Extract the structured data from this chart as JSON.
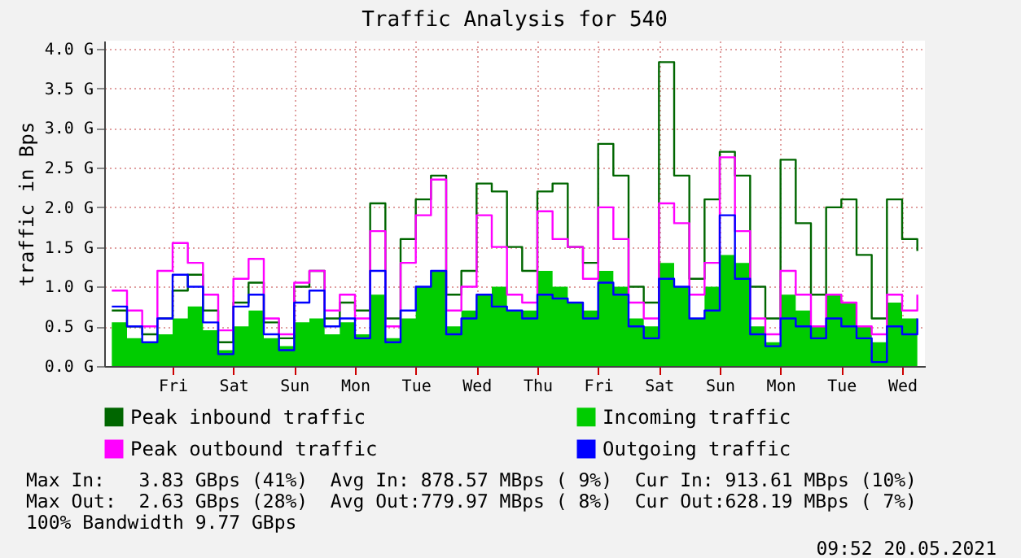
{
  "chart_data": {
    "type": "step",
    "title": "Traffic Analysis for 540",
    "ylabel": "traffic in Bps",
    "categories": [
      null,
      null,
      null,
      null,
      "Fri",
      null,
      null,
      null,
      "Sat",
      null,
      null,
      null,
      "Sun",
      null,
      null,
      null,
      "Mon",
      null,
      null,
      null,
      "Tue",
      null,
      null,
      null,
      "Wed",
      null,
      null,
      null,
      "Thu",
      null,
      null,
      null,
      "Fri",
      null,
      null,
      null,
      "Sat",
      null,
      null,
      null,
      "Sun",
      null,
      null,
      null,
      "Mon",
      null,
      null,
      null,
      "Tue",
      null,
      null,
      null,
      "Wed",
      null
    ],
    "series": [
      {
        "name": "Peak inbound traffic",
        "color": "#006600",
        "values": [
          0.7,
          0.5,
          0.4,
          0.6,
          0.95,
          1.15,
          0.7,
          0.3,
          0.8,
          1.05,
          0.55,
          0.35,
          1.0,
          1.2,
          0.6,
          0.8,
          0.7,
          2.05,
          0.6,
          1.6,
          2.1,
          2.4,
          0.9,
          1.2,
          2.3,
          2.2,
          1.5,
          1.2,
          2.2,
          2.3,
          1.5,
          1.3,
          2.8,
          2.4,
          1.0,
          0.8,
          3.83,
          2.4,
          1.1,
          2.1,
          2.7,
          2.4,
          1.0,
          0.6,
          2.6,
          1.8,
          0.9,
          2.0,
          2.1,
          1.4,
          0.6,
          2.1,
          1.6,
          1.45
        ]
      },
      {
        "name": "Incoming traffic",
        "type": "area",
        "color": "#00cc00",
        "values": [
          0.55,
          0.35,
          0.3,
          0.4,
          0.6,
          0.75,
          0.45,
          0.2,
          0.5,
          0.7,
          0.35,
          0.25,
          0.55,
          0.6,
          0.4,
          0.55,
          0.4,
          0.9,
          0.35,
          0.6,
          1.0,
          1.2,
          0.5,
          0.7,
          0.9,
          1.0,
          0.7,
          0.7,
          1.2,
          1.0,
          0.8,
          0.7,
          1.2,
          1.0,
          0.6,
          0.5,
          1.3,
          1.0,
          0.6,
          1.0,
          1.4,
          1.3,
          0.5,
          0.3,
          0.9,
          0.7,
          0.5,
          0.9,
          0.8,
          0.5,
          0.3,
          0.8,
          0.6,
          0.9
        ]
      },
      {
        "name": "Peak outbound traffic",
        "color": "#ff00ff",
        "values": [
          0.95,
          0.7,
          0.5,
          1.2,
          1.55,
          1.3,
          0.9,
          0.45,
          1.1,
          1.35,
          0.6,
          0.4,
          1.05,
          1.2,
          0.7,
          0.9,
          0.6,
          1.7,
          0.5,
          1.3,
          1.9,
          2.35,
          0.7,
          1.0,
          1.9,
          1.5,
          0.9,
          0.8,
          1.95,
          1.6,
          1.5,
          1.1,
          2.0,
          1.6,
          0.8,
          0.6,
          2.05,
          1.8,
          0.9,
          1.3,
          2.63,
          1.7,
          0.6,
          0.4,
          1.2,
          0.9,
          0.5,
          0.9,
          0.8,
          0.5,
          0.4,
          0.9,
          0.7,
          0.9
        ]
      },
      {
        "name": "Outgoing traffic",
        "color": "#0000ff",
        "values": [
          0.75,
          0.5,
          0.3,
          0.6,
          1.15,
          1.0,
          0.55,
          0.15,
          0.75,
          0.9,
          0.4,
          0.2,
          0.8,
          0.95,
          0.5,
          0.6,
          0.35,
          1.2,
          0.3,
          0.7,
          1.0,
          1.2,
          0.4,
          0.6,
          0.9,
          0.75,
          0.7,
          0.6,
          0.9,
          0.85,
          0.8,
          0.6,
          1.05,
          0.9,
          0.5,
          0.35,
          1.1,
          1.0,
          0.6,
          0.7,
          1.9,
          1.1,
          0.4,
          0.25,
          0.6,
          0.5,
          0.35,
          0.6,
          0.5,
          0.35,
          0.05,
          0.5,
          0.4,
          0.6
        ]
      }
    ],
    "ylim": [
      0,
      4.1
    ],
    "yticks": [
      {
        "value": 0,
        "label": "0.0 G"
      },
      {
        "value": 0.5,
        "label": "0.5 G"
      },
      {
        "value": 1,
        "label": "1.0 G"
      },
      {
        "value": 1.5,
        "label": "1.5 G"
      },
      {
        "value": 2,
        "label": "2.0 G"
      },
      {
        "value": 2.5,
        "label": "2.5 G"
      },
      {
        "value": 3,
        "label": "3.0 G"
      },
      {
        "value": 3.5,
        "label": "3.5 G"
      },
      {
        "value": 4,
        "label": "4.0 G"
      }
    ],
    "grid": true,
    "legend": "bottom",
    "annotations": [
      "Max In:   3.83 GBps (41%)  Avg In: 878.57 MBps ( 9%)  Cur In: 913.61 MBps (10%)",
      "Max Out:  2.63 GBps (28%)  Avg Out:779.97 MBps ( 8%)  Cur Out:628.19 MBps ( 7%)",
      "100% Bandwidth 9.77 GBps",
      "09:52 20.05.2021"
    ]
  }
}
